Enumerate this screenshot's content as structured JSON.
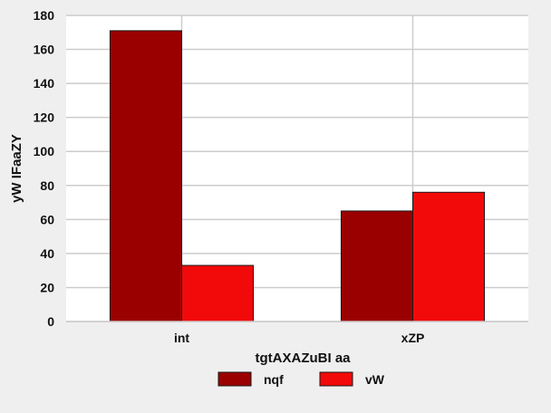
{
  "chart_data": {
    "type": "bar",
    "categories": [
      "int",
      "xZP"
    ],
    "series": [
      {
        "name": "nqf",
        "values": [
          171,
          65
        ],
        "color": "#9b0000"
      },
      {
        "name": "vW",
        "values": [
          33,
          76
        ],
        "color": "#f20a0a"
      }
    ],
    "xlabel": "tgtAXAZuBI aa",
    "ylabel": "yW IFaaZY",
    "ylim": [
      0,
      180
    ],
    "yticks": [
      0,
      20,
      40,
      60,
      80,
      100,
      120,
      140,
      160,
      180
    ],
    "grid": true,
    "legend_position": "bottom-center",
    "background_color": "#efefef",
    "plot_background_color": "#ffffff",
    "grid_color": "#cccccc"
  }
}
